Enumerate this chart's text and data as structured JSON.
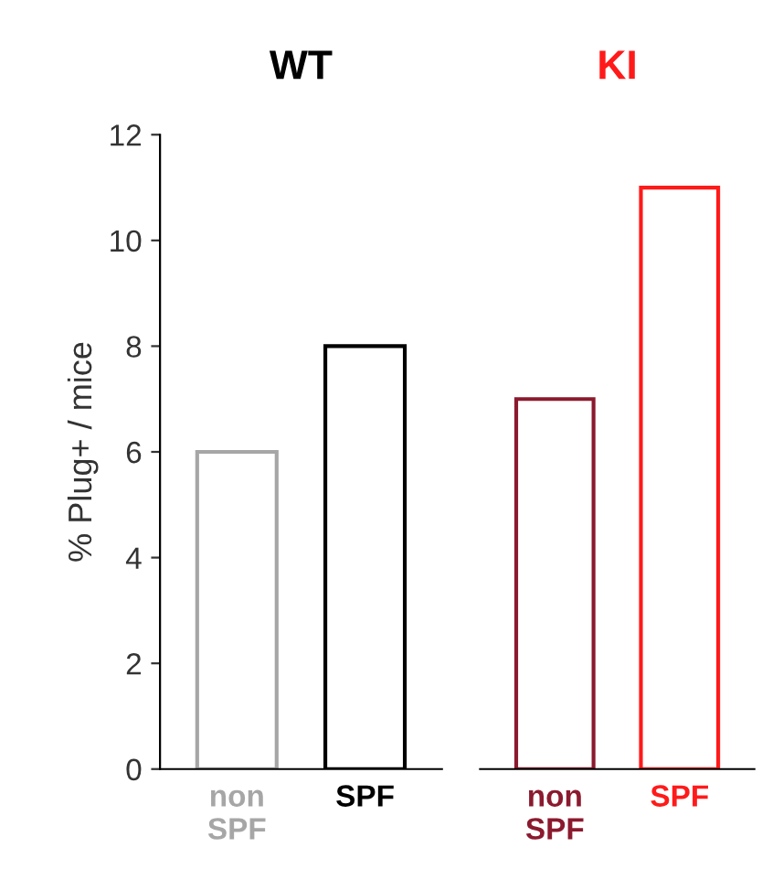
{
  "chart_data": [
    {
      "type": "bar",
      "title": "WT",
      "ylabel": "% Plug+ / mice",
      "categories": [
        "non\nSPF",
        "SPF"
      ],
      "values": [
        6,
        8
      ],
      "colors": [
        "#a6a6a6",
        "#000000"
      ],
      "ylim": [
        0,
        12
      ],
      "yticks": [
        0,
        2,
        4,
        6,
        8,
        10,
        12
      ]
    },
    {
      "type": "bar",
      "title": "KI",
      "categories": [
        "non\nSPF",
        "SPF"
      ],
      "values": [
        7,
        11
      ],
      "colors": [
        "#8b1a2e",
        "#ff1a1a"
      ],
      "ylim": [
        0,
        12
      ],
      "tick_labels": "x"
    }
  ]
}
